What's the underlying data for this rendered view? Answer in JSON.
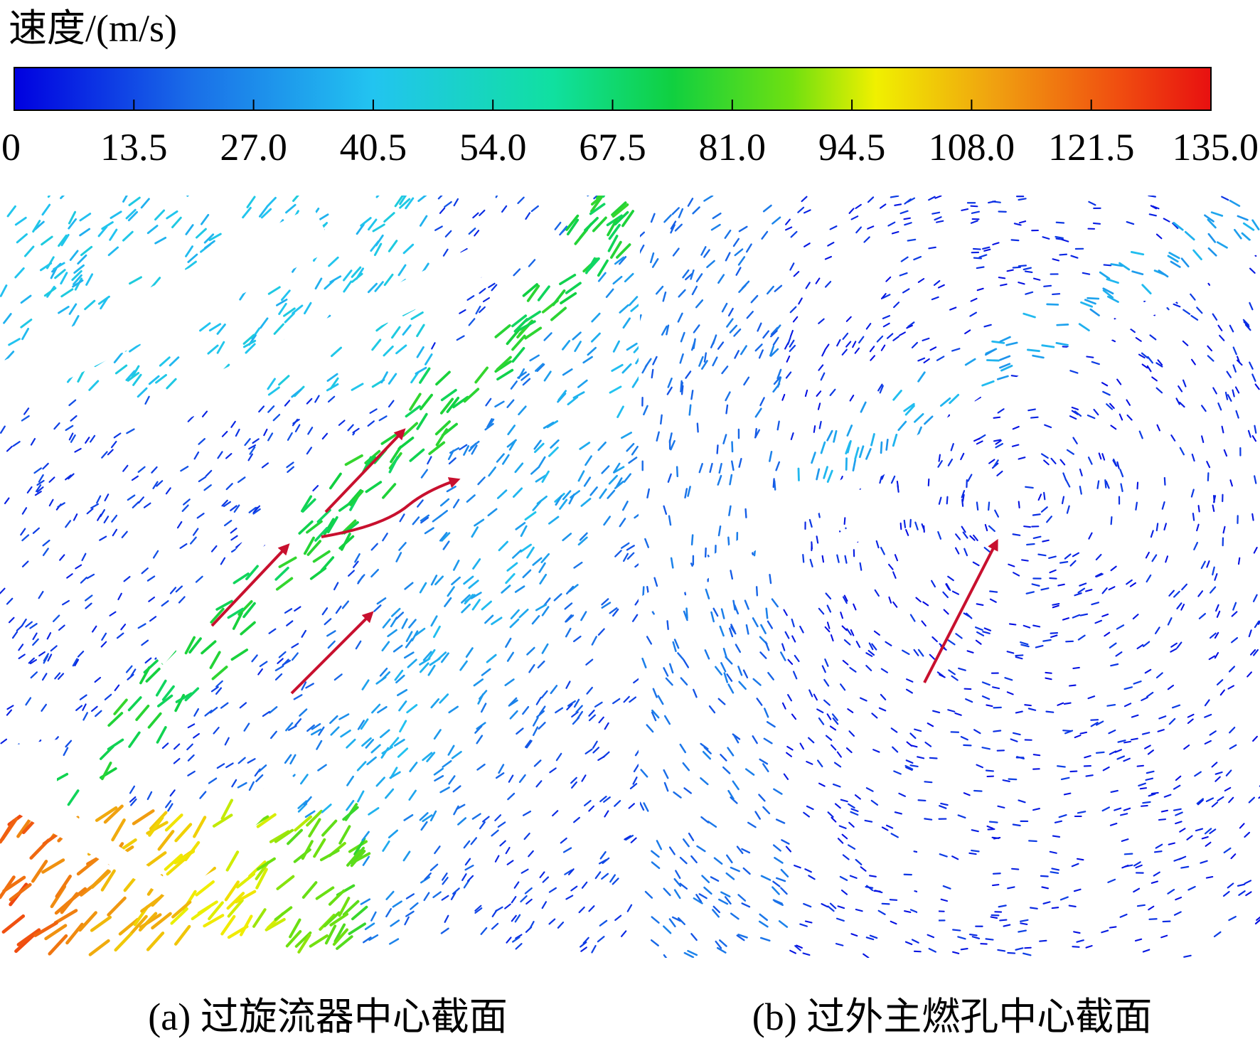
{
  "colorbar": {
    "title": "速度/(m/s)",
    "range": [
      0,
      135
    ],
    "ticks": [
      0,
      13.5,
      {
        "value": 27,
        "label": "27.0"
      },
      40.5,
      {
        "value": 54,
        "label": "54.0"
      },
      67.5,
      {
        "value": 81,
        "label": "81.0"
      },
      94.5,
      {
        "value": 108,
        "label": "108.0"
      },
      121.5,
      {
        "value": 135,
        "label": "135.0"
      }
    ]
  },
  "panels": [
    {
      "caption": "(a) 过旋流器中心截面"
    },
    {
      "caption": "(b) 过外主燃孔中心截面"
    }
  ]
}
